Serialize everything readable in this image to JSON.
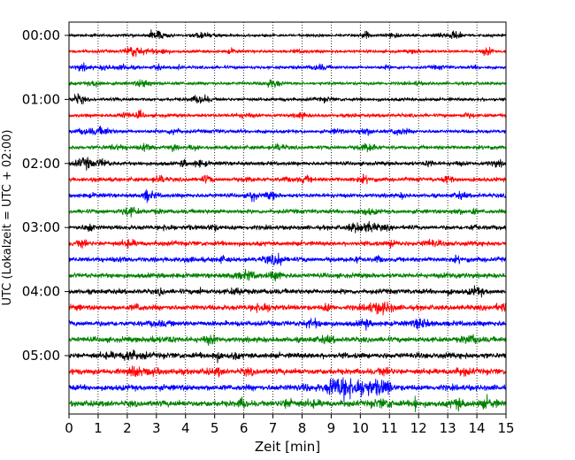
{
  "chart_data": {
    "type": "line",
    "chart_kind": "seismic-helicorder",
    "xlabel": "Zeit  [min]",
    "ylabel": "UTC (Lokalzeit = UTC + 02:00)",
    "xlim": [
      0,
      15
    ],
    "x_ticks": [
      "0",
      "1",
      "2",
      "3",
      "4",
      "5",
      "6",
      "7",
      "8",
      "9",
      "10",
      "11",
      "12",
      "13",
      "14",
      "15"
    ],
    "y_tick_labels": [
      "00:00",
      "01:00",
      "02:00",
      "03:00",
      "04:00",
      "05:00"
    ],
    "rows_per_hour": 4,
    "row_count": 24,
    "row_colors": [
      "#000000",
      "#ff0000",
      "#0000ff",
      "#008000"
    ],
    "grid": "vertical dotted lines at each minute",
    "notable_events": [
      {
        "row": 22,
        "minute_range": [
          9.0,
          11.0
        ],
        "description": "larger amplitude burst"
      },
      {
        "row": 23,
        "minute": 11.9,
        "description": "spike"
      }
    ]
  }
}
